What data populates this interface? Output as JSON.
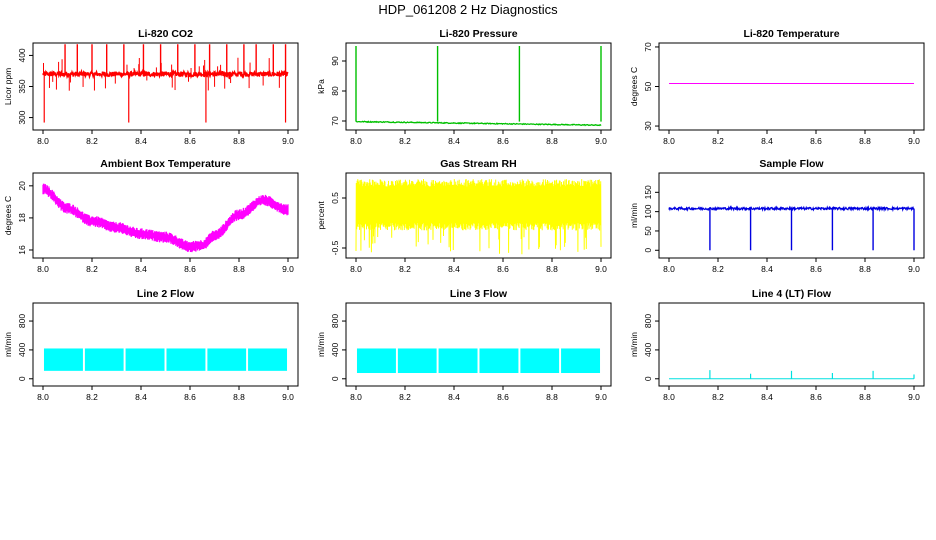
{
  "title": "HDP_061208  2 Hz Diagnostics",
  "chart_data": [
    {
      "id": "co2",
      "type": "line",
      "title": "Li-820 CO2",
      "ylabel": "Licor ppm",
      "color": "#ff0000",
      "xlim": [
        8.0,
        9.0
      ],
      "xticks": [
        8.0,
        8.2,
        8.4,
        8.6,
        8.8,
        9.0
      ],
      "xtick_labels": [
        "8.0",
        "8.2",
        "8.4",
        "8.6",
        "8.8",
        "9.0"
      ],
      "ylim": [
        280,
        420
      ],
      "yticks": [
        300,
        350,
        400
      ],
      "ytick_labels": [
        "300",
        "350",
        "400"
      ],
      "style": "noisy_spikes",
      "base": 370,
      "noise": 4,
      "spikes_up": [
        8.09,
        8.14,
        8.2,
        8.26,
        8.33,
        8.41,
        8.48,
        8.55,
        8.62,
        8.68,
        8.75,
        8.82,
        8.87,
        8.94,
        8.99
      ],
      "spike_up_value": 418,
      "spikes_down": [
        8.005,
        8.35,
        8.665,
        8.99
      ],
      "spike_down_value": 292
    },
    {
      "id": "pressure",
      "type": "line",
      "title": "Li-820 Pressure",
      "ylabel": "kPa",
      "color": "#00c000",
      "xlim": [
        8.0,
        9.0
      ],
      "xticks": [
        8.0,
        8.2,
        8.4,
        8.6,
        8.8,
        9.0
      ],
      "xtick_labels": [
        "8.0",
        "8.2",
        "8.4",
        "8.6",
        "8.8",
        "9.0"
      ],
      "ylim": [
        67,
        96
      ],
      "yticks": [
        70,
        80,
        90
      ],
      "ytick_labels": [
        "70",
        "80",
        "90"
      ],
      "style": "decline_spikes",
      "base_start": 69.8,
      "base_end": 68.6,
      "spikes_up": [
        8.0,
        8.333,
        8.667,
        9.0
      ],
      "spike_up_value": 95
    },
    {
      "id": "licor-temp",
      "type": "line",
      "title": "Li-820 Temperature",
      "ylabel": "degrees C",
      "color": "#ff00ff",
      "xlim": [
        8.0,
        9.0
      ],
      "xticks": [
        8.0,
        8.2,
        8.4,
        8.6,
        8.8,
        9.0
      ],
      "xtick_labels": [
        "8.0",
        "8.2",
        "8.4",
        "8.6",
        "8.8",
        "9.0"
      ],
      "ylim": [
        28,
        72
      ],
      "yticks": [
        30,
        50,
        70
      ],
      "ytick_labels": [
        "30",
        "50",
        "70"
      ],
      "style": "flat",
      "value": 51.5
    },
    {
      "id": "box-temp",
      "type": "line",
      "title": "Ambient Box Temperature",
      "ylabel": "degrees C",
      "color": "#ff00ff",
      "xlim": [
        8.0,
        9.0
      ],
      "xticks": [
        8.0,
        8.2,
        8.4,
        8.6,
        8.8,
        9.0
      ],
      "xtick_labels": [
        "8.0",
        "8.2",
        "8.4",
        "8.6",
        "8.8",
        "9.0"
      ],
      "ylim": [
        15.5,
        20.8
      ],
      "yticks": [
        16,
        18,
        20
      ],
      "ytick_labels": [
        "16",
        "18",
        "20"
      ],
      "style": "curve_band",
      "band": 0.35,
      "curve_x": [
        8.0,
        8.1,
        8.2,
        8.3,
        8.4,
        8.5,
        8.6,
        8.65,
        8.7,
        8.8,
        8.9,
        9.0
      ],
      "curve_y": [
        19.8,
        18.6,
        17.8,
        17.4,
        17.0,
        16.8,
        16.2,
        16.3,
        16.9,
        18.2,
        19.1,
        18.5
      ]
    },
    {
      "id": "rh",
      "type": "line",
      "title": "Gas Stream RH",
      "ylabel": "percent",
      "color": "#ffff00",
      "xlim": [
        8.0,
        9.0
      ],
      "xticks": [
        8.0,
        8.2,
        8.4,
        8.6,
        8.8,
        9.0
      ],
      "xtick_labels": [
        "8.0",
        "8.2",
        "8.4",
        "8.6",
        "8.8",
        "9.0"
      ],
      "ylim": [
        -0.7,
        1.0
      ],
      "yticks": [
        -0.5,
        0.5
      ],
      "ytick_labels": [
        "-0.5",
        "0.5"
      ],
      "style": "noise_fill",
      "low": -0.15,
      "high": 0.88,
      "dip_low": -0.65
    },
    {
      "id": "sample-flow",
      "type": "line",
      "title": "Sample Flow",
      "ylabel": "ml/min",
      "color": "#0000e0",
      "xlim": [
        8.0,
        9.0
      ],
      "xticks": [
        8.0,
        8.2,
        8.4,
        8.6,
        8.8,
        9.0
      ],
      "xtick_labels": [
        "8.0",
        "8.2",
        "8.4",
        "8.6",
        "8.8",
        "9.0"
      ],
      "ylim": [
        -20,
        200
      ],
      "yticks": [
        0,
        50,
        100,
        150
      ],
      "ytick_labels": [
        "0",
        "50",
        "100",
        "150"
      ],
      "style": "flat_drops",
      "base": 108,
      "noise": 3,
      "drops": [
        8.167,
        8.333,
        8.5,
        8.667,
        8.833,
        9.0
      ],
      "drop_value": 0
    },
    {
      "id": "line2-flow",
      "type": "line",
      "title": "Line 2 Flow",
      "ylabel": "ml/min",
      "color": "#00ffff",
      "xlim": [
        8.0,
        9.0
      ],
      "xticks": [
        8.0,
        8.2,
        8.4,
        8.6,
        8.8,
        9.0
      ],
      "xtick_labels": [
        "8.0",
        "8.2",
        "8.4",
        "8.6",
        "8.8",
        "9.0"
      ],
      "ylim": [
        -100,
        1050
      ],
      "yticks": [
        0,
        400,
        800
      ],
      "ytick_labels": [
        "0",
        "400",
        "800"
      ],
      "style": "segmented_band",
      "low": 110,
      "high": 420,
      "gaps": [
        8.167,
        8.333,
        8.5,
        8.667,
        8.833
      ]
    },
    {
      "id": "line3-flow",
      "type": "line",
      "title": "Line 3 Flow",
      "ylabel": "ml/min",
      "color": "#00ffff",
      "xlim": [
        8.0,
        9.0
      ],
      "xticks": [
        8.0,
        8.2,
        8.4,
        8.6,
        8.8,
        9.0
      ],
      "xtick_labels": [
        "8.0",
        "8.2",
        "8.4",
        "8.6",
        "8.8",
        "9.0"
      ],
      "ylim": [
        -100,
        1050
      ],
      "yticks": [
        0,
        400,
        800
      ],
      "ytick_labels": [
        "0",
        "400",
        "800"
      ],
      "style": "segmented_band",
      "low": 80,
      "high": 420,
      "gaps": [
        8.167,
        8.333,
        8.5,
        8.667,
        8.833
      ]
    },
    {
      "id": "line4-flow",
      "type": "line",
      "title": "Line 4 (LT) Flow",
      "ylabel": "ml/min",
      "color": "#00e0e0",
      "xlim": [
        8.0,
        9.0
      ],
      "xticks": [
        8.0,
        8.2,
        8.4,
        8.6,
        8.8,
        9.0
      ],
      "xtick_labels": [
        "8.0",
        "8.2",
        "8.4",
        "8.6",
        "8.8",
        "9.0"
      ],
      "ylim": [
        -100,
        1050
      ],
      "yticks": [
        0,
        400,
        800
      ],
      "ytick_labels": [
        "0",
        "400",
        "800"
      ],
      "style": "flat_spikes",
      "base": 0,
      "spikes": [
        8.167,
        8.333,
        8.5,
        8.667,
        8.833,
        9.0
      ],
      "spike_values": [
        120,
        70,
        110,
        80,
        110,
        60
      ]
    }
  ]
}
